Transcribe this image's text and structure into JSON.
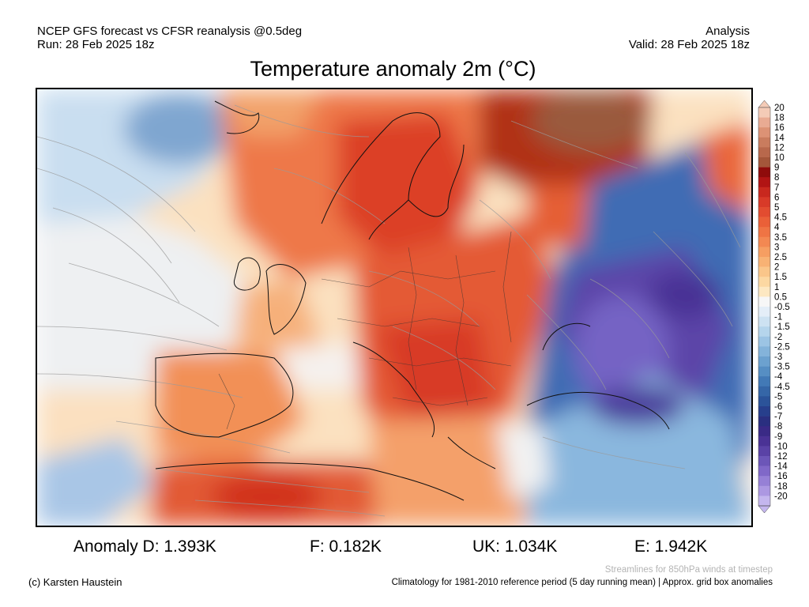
{
  "header": {
    "line1": "NCEP GFS forecast vs CFSR reanalysis @0.5deg",
    "line2": "Run: 28 Feb 2025 18z",
    "right1": "Analysis",
    "right2": "Valid: 28 Feb 2025 18z"
  },
  "title": "Temperature anomaly 2m (°C)",
  "legend": {
    "labels": [
      "20",
      "18",
      "16",
      "14",
      "12",
      "10",
      "9",
      "8",
      "7",
      "6",
      "5",
      "4.5",
      "4",
      "3.5",
      "3",
      "2.5",
      "2",
      "1.5",
      "1",
      "0.5",
      "-0.5",
      "-1",
      "-1.5",
      "-2",
      "-2.5",
      "-3",
      "-3.5",
      "-4",
      "-4.5",
      "-5",
      "-6",
      "-7",
      "-8",
      "-9",
      "-10",
      "-12",
      "-14",
      "-16",
      "-18",
      "-20"
    ],
    "colors": [
      "#f4cbb7",
      "#e9ab93",
      "#dc9275",
      "#c97c5e",
      "#b8684c",
      "#a4563a",
      "#8f0b0b",
      "#b11414",
      "#c8281e",
      "#d83a28",
      "#e24c30",
      "#ea6038",
      "#ef7444",
      "#f38852",
      "#f69e62",
      "#f8b274",
      "#fac68a",
      "#fcd8a2",
      "#fde8c2",
      "#f7f7f7",
      "#e4eef8",
      "#cde2f2",
      "#b5d5ec",
      "#9cc4e4",
      "#84b3da",
      "#6ca1cf",
      "#568ec3",
      "#4279b6",
      "#3566a7",
      "#2b5399",
      "#273f8c",
      "#2a2f80",
      "#3a2a86",
      "#4a3295",
      "#5a42a6",
      "#6c56b8",
      "#8068c8",
      "#9680d6",
      "#ac98e2",
      "#c4b6ee"
    ]
  },
  "stats": {
    "d": "Anomaly D: 1.393K",
    "f": "F: 0.182K",
    "uk": "UK: 1.034K",
    "e": "E: 1.942K"
  },
  "footer": {
    "credit": "(c) Karsten Haustein",
    "streamlines": "Streamlines for 850hPa winds at timestep",
    "climatology": "Climatology for 1981-2010 reference period (5 day running mean) | Approx. grid box anomalies"
  }
}
